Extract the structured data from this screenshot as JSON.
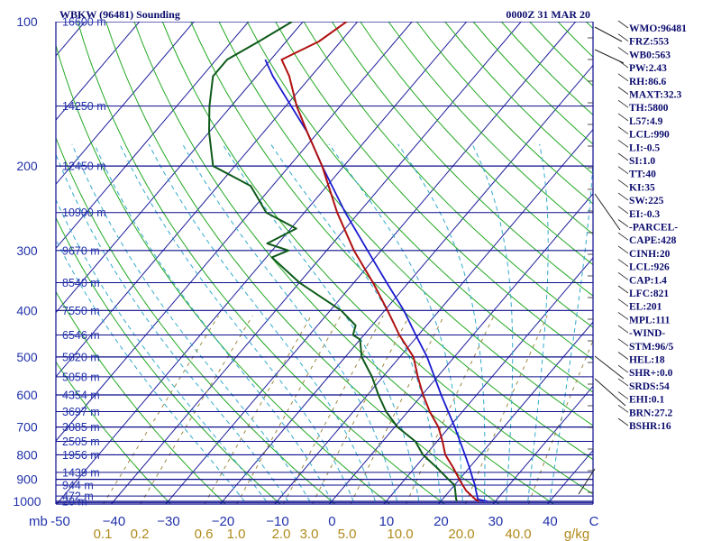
{
  "header": {
    "station": "WBKW (96481) Sounding",
    "time": "0000Z 31 MAR 20"
  },
  "colors": {
    "isobar": "#0d0d8c",
    "isotherm": "#1e1e9c",
    "dry_adiabat": "#22a822",
    "moist_adiabat": "#33aacc",
    "mixing_ratio": "#9a8a44",
    "temperature": "#b01010",
    "dewpoint": "#0e5a1a",
    "parcel": "#1a1ad0",
    "text": "#2233aa"
  },
  "chart_data": {
    "type": "skew-T",
    "pressure_unit_label": "mb",
    "mixing_ratio_unit_label": "g/kg",
    "pressure_levels": [
      {
        "p": 1000,
        "label": "1000"
      },
      {
        "p": 900,
        "label": "900"
      },
      {
        "p": 800,
        "label": "800"
      },
      {
        "p": 700,
        "label": "700"
      },
      {
        "p": 600,
        "label": "600"
      },
      {
        "p": 500,
        "label": "500"
      },
      {
        "p": 400,
        "label": "400"
      },
      {
        "p": 300,
        "label": "300"
      },
      {
        "p": 200,
        "label": "200"
      },
      {
        "p": 100,
        "label": "100"
      }
    ],
    "height_labels": [
      {
        "p": 1006,
        "label": "20 m"
      },
      {
        "p": 975,
        "label": "472 m"
      },
      {
        "p": 925,
        "label": "944 m"
      },
      {
        "p": 870,
        "label": "1439 m"
      },
      {
        "p": 800,
        "label": "1956 m"
      },
      {
        "p": 750,
        "label": "2505 m"
      },
      {
        "p": 700,
        "label": "3085 m"
      },
      {
        "p": 650,
        "label": "3697 m"
      },
      {
        "p": 600,
        "label": "4354 m"
      },
      {
        "p": 550,
        "label": "5058 m"
      },
      {
        "p": 500,
        "label": "5820 m"
      },
      {
        "p": 450,
        "label": "6546 m"
      },
      {
        "p": 400,
        "label": "7550 m"
      },
      {
        "p": 350,
        "label": "8540 m"
      },
      {
        "p": 300,
        "label": "9670 m"
      },
      {
        "p": 250,
        "label": "10900 m"
      },
      {
        "p": 200,
        "label": "12450 m"
      },
      {
        "p": 150,
        "label": "14250 m"
      },
      {
        "p": 100,
        "label": "16600 m"
      }
    ],
    "temperature_ticks": [
      -50,
      -40,
      -30,
      -20,
      -10,
      0,
      10,
      20,
      30,
      40
    ],
    "temperature_tick_labels": [
      "-50",
      "−40",
      "−30",
      "−20",
      "−10",
      "0",
      "10",
      "20",
      "30",
      "40"
    ],
    "mixing_ratio_ticks": [
      {
        "w": 0.1,
        "label": "0.1"
      },
      {
        "w": 0.2,
        "label": "0.2"
      },
      {
        "w": 0.6,
        "label": "0.6"
      },
      {
        "w": 1.0,
        "label": "1.0"
      },
      {
        "w": 2.0,
        "label": "2.0"
      },
      {
        "w": 3.0,
        "label": "3.0"
      },
      {
        "w": 5.0,
        "label": "5.0"
      },
      {
        "w": 10.0,
        "label": "10.0"
      },
      {
        "w": 20.0,
        "label": "20.0"
      },
      {
        "w": 40.0,
        "label": "40.0"
      }
    ],
    "temperature_profile": [
      [
        1000,
        27
      ],
      [
        990,
        26
      ],
      [
        950,
        23
      ],
      [
        925,
        21.5
      ],
      [
        900,
        20
      ],
      [
        850,
        17
      ],
      [
        800,
        13.6
      ],
      [
        750,
        11
      ],
      [
        700,
        8
      ],
      [
        650,
        4
      ],
      [
        600,
        0.2
      ],
      [
        550,
        -3.6
      ],
      [
        500,
        -7.5
      ],
      [
        450,
        -13.5
      ],
      [
        400,
        -19.5
      ],
      [
        350,
        -26.5
      ],
      [
        300,
        -35
      ],
      [
        250,
        -44
      ],
      [
        200,
        -54
      ],
      [
        170,
        -62
      ],
      [
        150,
        -68
      ],
      [
        130,
        -74
      ],
      [
        120,
        -78
      ],
      [
        110,
        -74
      ],
      [
        100,
        -72
      ]
    ],
    "dewpoint_profile": [
      [
        1000,
        23
      ],
      [
        990,
        22.5
      ],
      [
        950,
        21
      ],
      [
        925,
        20
      ],
      [
        900,
        18
      ],
      [
        850,
        14
      ],
      [
        800,
        9.5
      ],
      [
        750,
        6
      ],
      [
        700,
        0.5
      ],
      [
        650,
        -4
      ],
      [
        600,
        -8
      ],
      [
        550,
        -12
      ],
      [
        500,
        -17
      ],
      [
        460,
        -20
      ],
      [
        450,
        -22
      ],
      [
        430,
        -23
      ],
      [
        400,
        -28
      ],
      [
        350,
        -40
      ],
      [
        310,
        -49
      ],
      [
        300,
        -47
      ],
      [
        290,
        -52
      ],
      [
        270,
        -49
      ],
      [
        250,
        -57
      ],
      [
        220,
        -64
      ],
      [
        200,
        -74
      ],
      [
        170,
        -80
      ],
      [
        150,
        -84
      ],
      [
        130,
        -88
      ],
      [
        120,
        -88
      ],
      [
        110,
        -85
      ],
      [
        100,
        -82
      ]
    ],
    "parcel_profile": [
      [
        1000,
        28.6
      ],
      [
        990,
        26.5
      ],
      [
        950,
        24.8
      ],
      [
        926,
        23.8
      ],
      [
        900,
        22.5
      ],
      [
        850,
        20
      ],
      [
        800,
        17.2
      ],
      [
        700,
        11
      ],
      [
        600,
        3.5
      ],
      [
        500,
        -5
      ],
      [
        450,
        -10.5
      ],
      [
        400,
        -16.5
      ],
      [
        350,
        -24
      ],
      [
        300,
        -32.5
      ],
      [
        250,
        -42.5
      ],
      [
        200,
        -54
      ],
      [
        170,
        -62
      ],
      [
        150,
        -69
      ],
      [
        130,
        -77
      ],
      [
        120,
        -81
      ]
    ],
    "indices": [
      "WMO:96481",
      "FRZ:553",
      "WB0:563",
      "PW:2.43",
      "RH:86.6",
      "MAXT:32.3",
      "TH:5800",
      "L57:4.9",
      "LCL:990",
      "LI:-0.5",
      "SI:1.0",
      "TT:40",
      "KI:35",
      "SW:225",
      "EI:-0.3",
      "-PARCEL-",
      "CAPE:428",
      "CINH:20",
      "LCL:926",
      "CAP:1.4",
      "LFC:821",
      "EL:201",
      "MPL:111",
      "-WIND-",
      "STM:96/5",
      "HEL:18",
      "SHR+:0.0",
      "SRDS:54",
      "EHI:0.1",
      "BRN:27.2",
      "BSHR:16"
    ]
  }
}
